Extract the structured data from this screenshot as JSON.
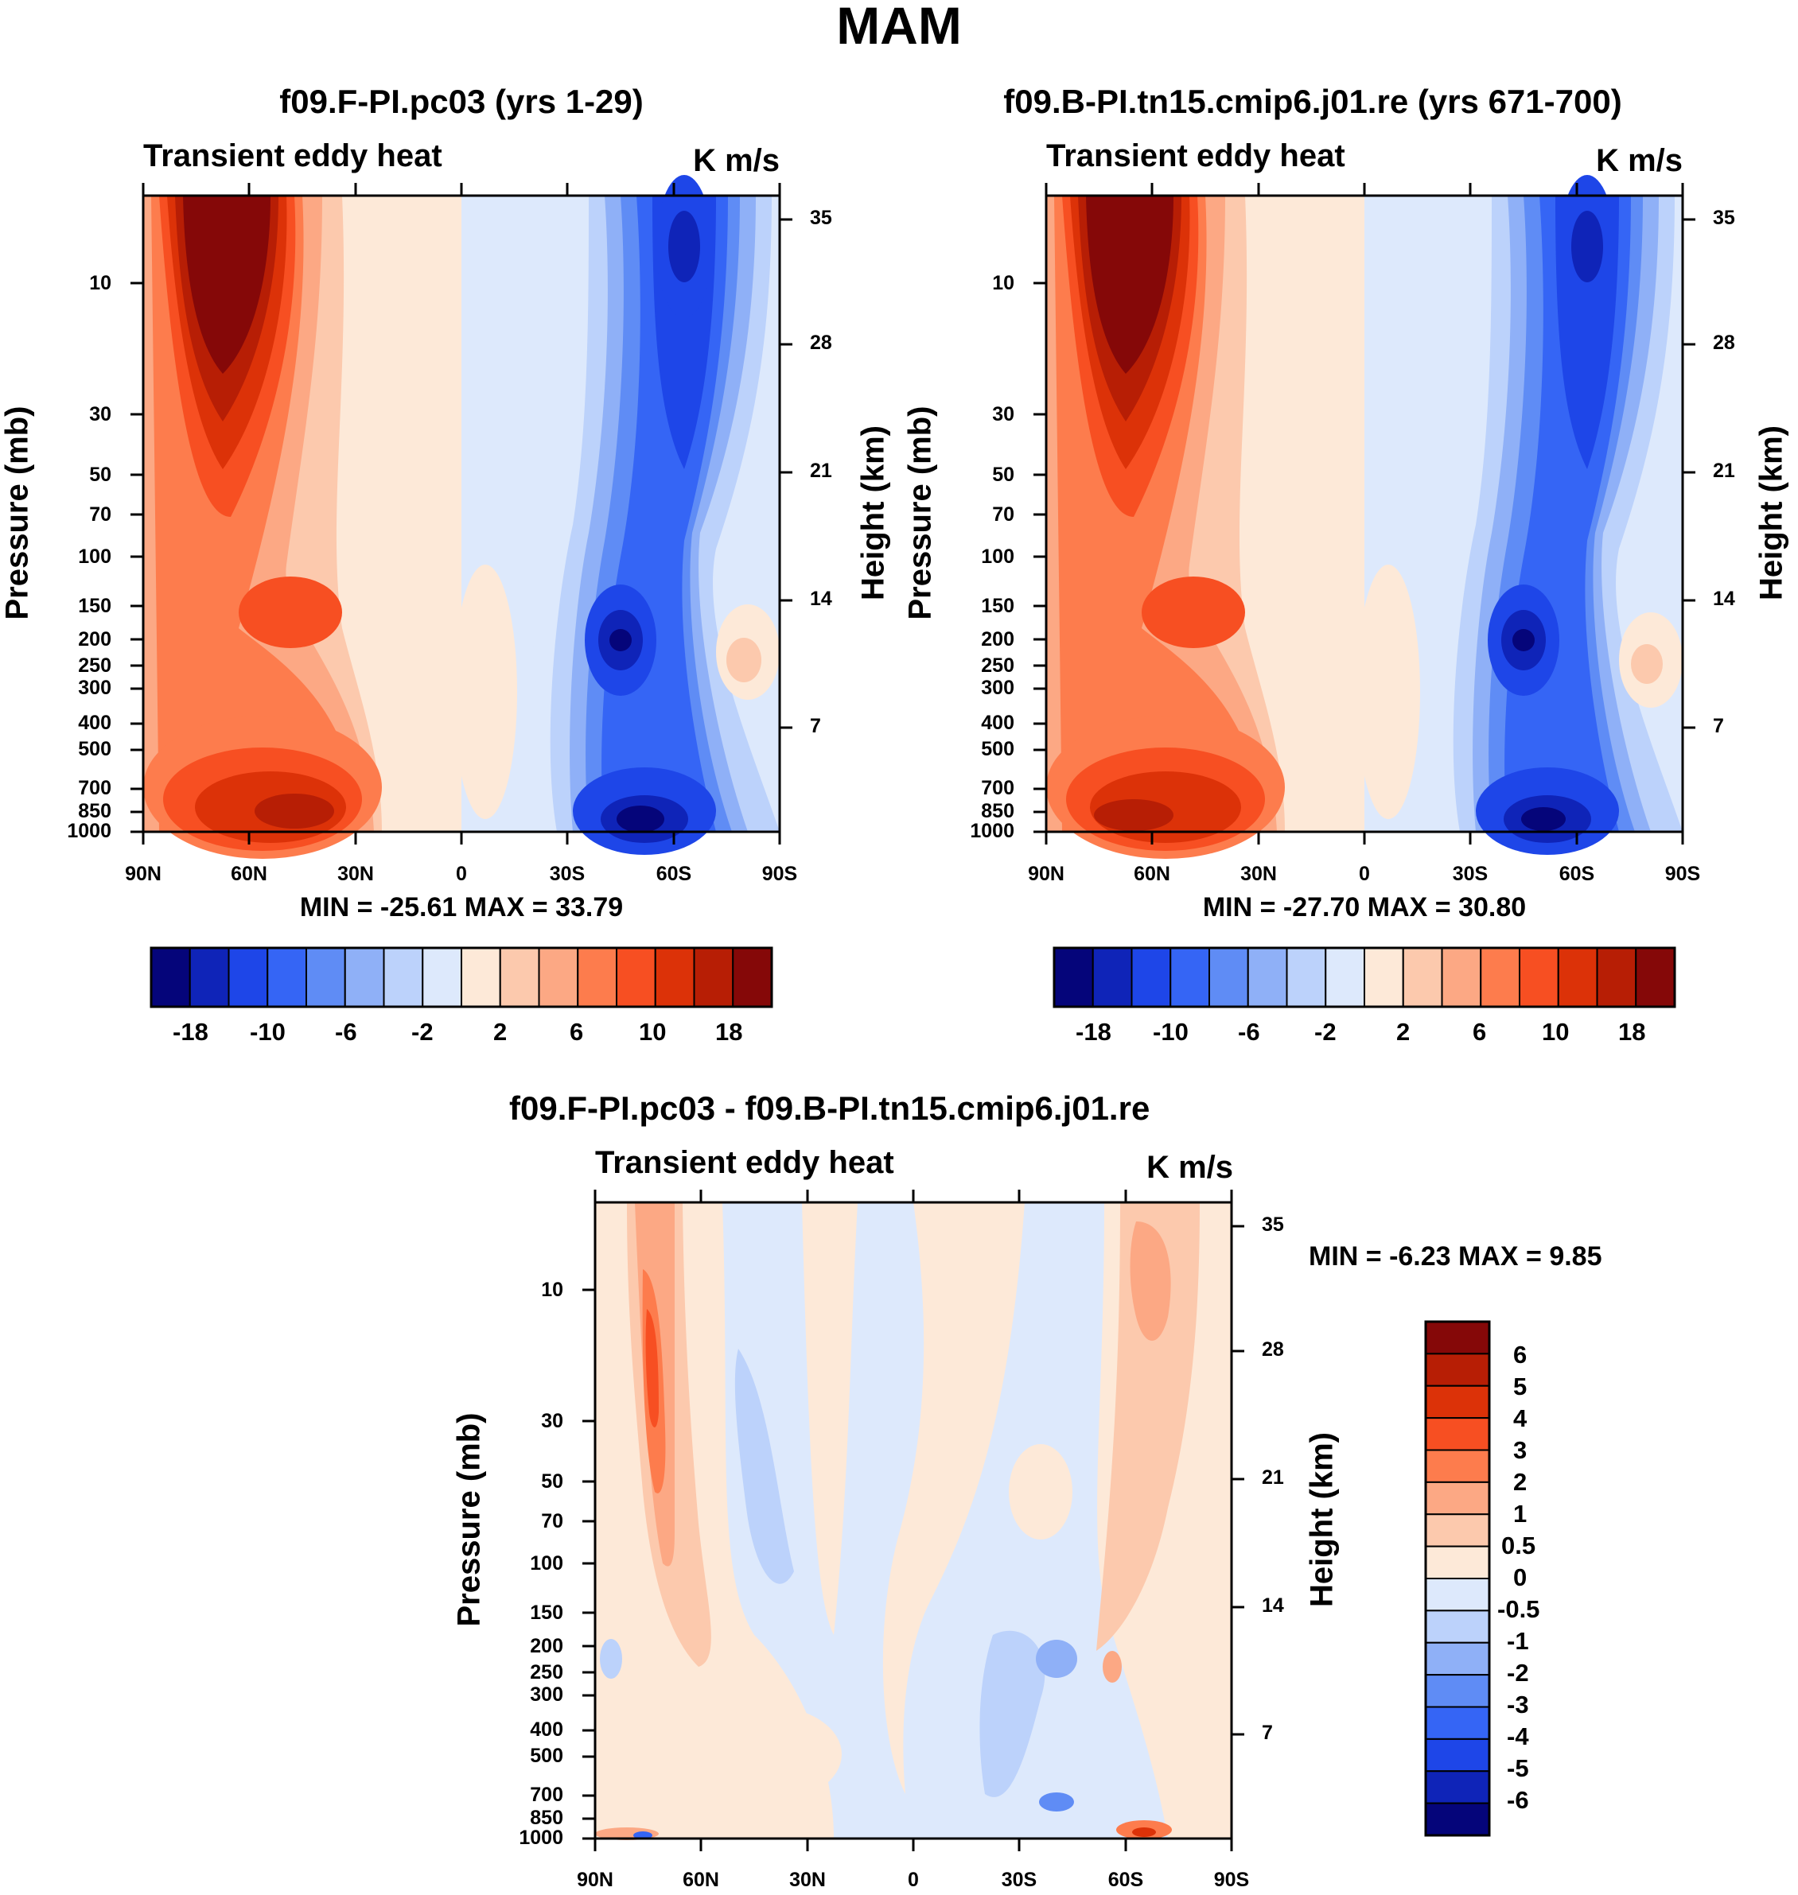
{
  "figure_title": "MAM",
  "colors": {
    "scale": [
      "#05057a",
      "#0f24b8",
      "#1e46e8",
      "#3565f5",
      "#5f8cf5",
      "#8fb0f7",
      "#bcd2fb",
      "#dde9fc",
      "#fde9d8",
      "#fcc9ad",
      "#fca884",
      "#fd7c4d",
      "#f74f22",
      "#dc3208",
      "#b71e05",
      "#850808"
    ]
  },
  "chart_data": [
    {
      "type": "heatmap",
      "panel": "top-left",
      "title": "f09.F-PI.pc03 (yrs 1-29)",
      "subtitle": "Transient eddy heat",
      "units": "K m/s",
      "min_max": "MIN = -25.61  MAX =  33.79",
      "ylabel": "Pressure (mb)",
      "ylabel_right": "Height (km)",
      "x_ticks": [
        "90N",
        "60N",
        "30N",
        "0",
        "30S",
        "60S",
        "90S"
      ],
      "y_ticks": [
        "10",
        "30",
        "50",
        "70",
        "100",
        "150",
        "200",
        "250",
        "300",
        "400",
        "500",
        "700",
        "850",
        "1000"
      ],
      "y_ticks_right": [
        "35",
        "28",
        "21",
        "14",
        "7"
      ],
      "colorbar_labels": [
        "-18",
        "-10",
        "-6",
        "-2",
        "2",
        "6",
        "10",
        "18"
      ],
      "summary": "Positive (red) maximum near 65N in the stratosphere (~5-30 mb) and 50-60N at 700-1000 mb; negative (blue) maximum near 60S at 5-20 mb and 40-60S at 200 mb and 850 mb."
    },
    {
      "type": "heatmap",
      "panel": "top-right",
      "title": "f09.B-PI.tn15.cmip6.j01.re (yrs 671-700)",
      "subtitle": "Transient eddy heat",
      "units": "K m/s",
      "min_max": "MIN = -27.70  MAX =  30.80",
      "ylabel": "Pressure (mb)",
      "ylabel_right": "Height (km)",
      "x_ticks": [
        "90N",
        "60N",
        "30N",
        "0",
        "30S",
        "60S",
        "90S"
      ],
      "y_ticks": [
        "10",
        "30",
        "50",
        "70",
        "100",
        "150",
        "200",
        "250",
        "300",
        "400",
        "500",
        "700",
        "850",
        "1000"
      ],
      "y_ticks_right": [
        "35",
        "28",
        "21",
        "14",
        "7"
      ],
      "colorbar_labels": [
        "-18",
        "-10",
        "-6",
        "-2",
        "2",
        "6",
        "10",
        "18"
      ],
      "summary": "Nearly identical structure to the top-left panel."
    },
    {
      "type": "heatmap",
      "panel": "bottom",
      "title": "f09.F-PI.pc03 - f09.B-PI.tn15.cmip6.j01.re",
      "subtitle": "Transient eddy heat",
      "units": "K m/s",
      "min_max": "MIN =  -6.23  MAX =   9.85",
      "ylabel": "Pressure (mb)",
      "ylabel_right": "Height (km)",
      "x_ticks": [
        "90N",
        "60N",
        "30N",
        "0",
        "30S",
        "60S",
        "90S"
      ],
      "y_ticks": [
        "10",
        "30",
        "50",
        "70",
        "100",
        "150",
        "200",
        "250",
        "300",
        "400",
        "500",
        "700",
        "850",
        "1000"
      ],
      "y_ticks_right": [
        "35",
        "28",
        "21",
        "14",
        "7"
      ],
      "colorbar_labels": [
        "6",
        "5",
        "4",
        "3",
        "2",
        "1",
        "0.5",
        "0",
        "-0.5",
        "-1",
        "-2",
        "-3",
        "-4",
        "-5",
        "-6"
      ],
      "summary": "Positive difference column near 70N (max ~4 at 20-30 mb), positive near 60-65S aloft, weak mixed +/-0.5 elsewhere."
    }
  ]
}
